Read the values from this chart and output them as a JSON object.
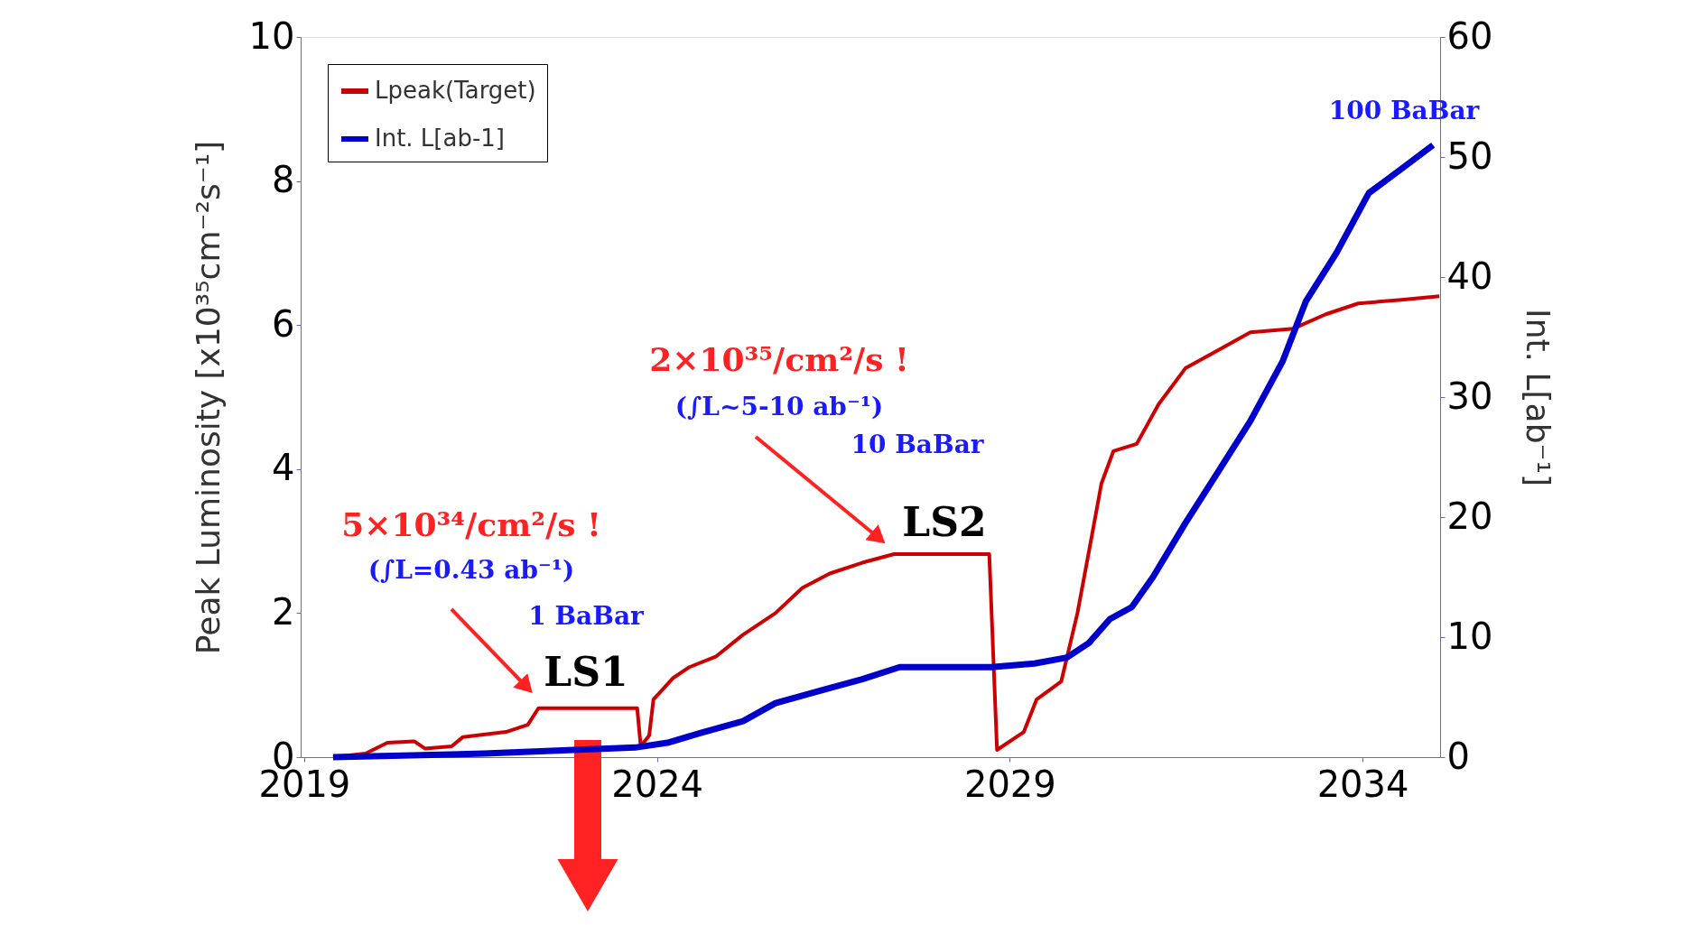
{
  "chart_data": {
    "type": "line",
    "xlim": [
      2018.95,
      2035.1
    ],
    "xticks": [
      2019,
      2024,
      2029,
      2034
    ],
    "ylabel": "Peak Luminosity [x10³⁵cm⁻²s⁻¹]",
    "ylim": [
      0,
      10
    ],
    "yticks": [
      0,
      2,
      4,
      6,
      8,
      10
    ],
    "y2label": "Int. L[ab⁻¹]",
    "y2lim": [
      0,
      60
    ],
    "y2ticks": [
      0,
      10,
      20,
      30,
      40,
      50,
      60
    ],
    "grid": false,
    "legend": "top left",
    "marker": "none",
    "line_style": "solid",
    "series": [
      {
        "name": "Lpeak(Target)",
        "color": "#cc0000",
        "x": [
          2019.41,
          2019.87,
          2020.18,
          2020.56,
          2020.71,
          2021.09,
          2021.25,
          2021.86,
          2022.17,
          2022.32,
          2023.72,
          2023.77,
          2023.89,
          2023.95,
          2024.23,
          2024.46,
          2024.84,
          2025.22,
          2025.68,
          2026.06,
          2026.45,
          2026.91,
          2027.36,
          2028.71,
          2028.82,
          2029.2,
          2029.38,
          2029.73,
          2029.96,
          2030.15,
          2030.3,
          2030.47,
          2030.8,
          2031.11,
          2031.49,
          2031.95,
          2032.41,
          2033.02,
          2033.48,
          2033.94,
          2034.55,
          2035.09
        ],
        "values": [
          0,
          0.05,
          0.2,
          0.22,
          0.12,
          0.15,
          0.28,
          0.35,
          0.45,
          0.68,
          0.68,
          0.15,
          0.3,
          0.8,
          1.1,
          1.25,
          1.4,
          1.7,
          2.0,
          2.35,
          2.55,
          2.7,
          2.82,
          2.82,
          0.1,
          0.35,
          0.8,
          1.05,
          2.0,
          3.0,
          3.8,
          4.25,
          4.35,
          4.9,
          5.4,
          5.65,
          5.9,
          5.95,
          6.15,
          6.3,
          6.35,
          6.4
        ]
      },
      {
        "name": "Int. L[ab-1]",
        "color": "#0000cc",
        "axis": "y2",
        "x": [
          2019.41,
          2021.55,
          2023.69,
          2024.15,
          2024.61,
          2025.22,
          2025.68,
          2026.29,
          2026.91,
          2027.44,
          2028.74,
          2029.35,
          2029.81,
          2030.12,
          2030.42,
          2030.73,
          2031.03,
          2031.49,
          2031.87,
          2032.41,
          2032.87,
          2033.2,
          2033.63,
          2034.09,
          2034.55,
          2035.0
        ],
        "values": [
          0,
          0.3,
          0.8,
          1.2,
          2,
          3,
          4.5,
          5.5,
          6.5,
          7.5,
          7.5,
          7.8,
          8.3,
          9.5,
          11.5,
          12.5,
          15,
          19.5,
          23,
          28,
          33,
          38,
          42,
          47,
          49,
          51
        ]
      }
    ],
    "annotations": [
      "5×10³⁴/cm²/s !",
      "(∫L=0.43 ab⁻¹)",
      "1 BaBar",
      "LS1",
      "2×10³⁵/cm²/s !",
      "(∫L~5-10 ab⁻¹)",
      "10 BaBar",
      "LS2",
      "100 BaBar"
    ]
  }
}
